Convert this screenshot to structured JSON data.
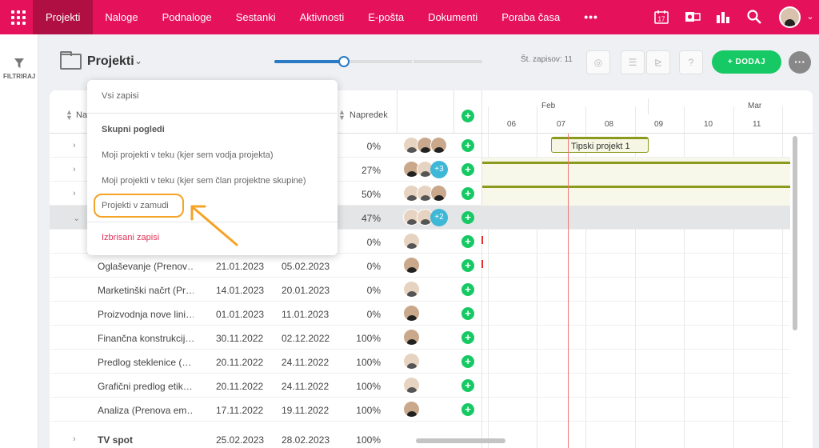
{
  "topbar": {
    "nav": [
      "Projekti",
      "Naloge",
      "Podnaloge",
      "Sestanki",
      "Aktivnosti",
      "E-pošta",
      "Dokumenti",
      "Poraba časa"
    ],
    "more": "•••",
    "calendar_day": "17",
    "accent": "#e5115b"
  },
  "leftbar": {
    "filter_label": "FILTRIRAJ"
  },
  "toolbar": {
    "title": "Projekti",
    "record_count": "Št. zapisov: 11",
    "add_label": "DODAJ",
    "zoom_level": 0.32
  },
  "columns": {
    "name": "Naziv",
    "progress": "Napredek"
  },
  "timeline": {
    "months": [
      "Feb",
      "Mar"
    ],
    "days": [
      "06",
      "07",
      "08",
      "09",
      "10",
      "11"
    ]
  },
  "rows": [
    {
      "name": "",
      "start": "",
      "end": "",
      "progress": "0%"
    },
    {
      "name": "",
      "start": "",
      "end": "",
      "progress": "27%",
      "extra": "+3"
    },
    {
      "name": "",
      "start": "",
      "end": "",
      "progress": "50%"
    },
    {
      "name": "",
      "start": "",
      "end": "",
      "progress": "47%",
      "extra": "+2"
    },
    {
      "name": "",
      "start": "",
      "end": "",
      "progress": "0%"
    },
    {
      "name": "Oglaševanje (Prenov…",
      "start": "21.01.2023",
      "end": "05.02.2023",
      "progress": "0%"
    },
    {
      "name": "Marketinški načrt (Pr…",
      "start": "14.01.2023",
      "end": "20.01.2023",
      "progress": "0%"
    },
    {
      "name": "Proizvodnja nove lini…",
      "start": "01.01.2023",
      "end": "11.01.2023",
      "progress": "0%"
    },
    {
      "name": "Finančna konstrukcij…",
      "start": "30.11.2022",
      "end": "02.12.2022",
      "progress": "100%"
    },
    {
      "name": "Predlog steklenice (…",
      "start": "20.11.2022",
      "end": "24.11.2022",
      "progress": "100%"
    },
    {
      "name": "Grafični predlog etik…",
      "start": "20.11.2022",
      "end": "24.11.2022",
      "progress": "100%"
    },
    {
      "name": "Analiza (Prenova em…",
      "start": "17.11.2022",
      "end": "19.11.2022",
      "progress": "100%"
    },
    {
      "name": "TV spot",
      "start": "25.02.2023",
      "end": "28.02.2023",
      "progress": "100%"
    }
  ],
  "gantt": {
    "bar_label": "Tipski projekt 1"
  },
  "dropdown": {
    "all": "Vsi zapisi",
    "group_header": "Skupni pogledi",
    "items": [
      "Moji projekti v teku (kjer sem vodja projekta)",
      "Moji projekti v teku (kjer sem član projektne skupine)",
      "Projekti v zamudi"
    ],
    "deleted": "Izbrisani zapisi"
  }
}
